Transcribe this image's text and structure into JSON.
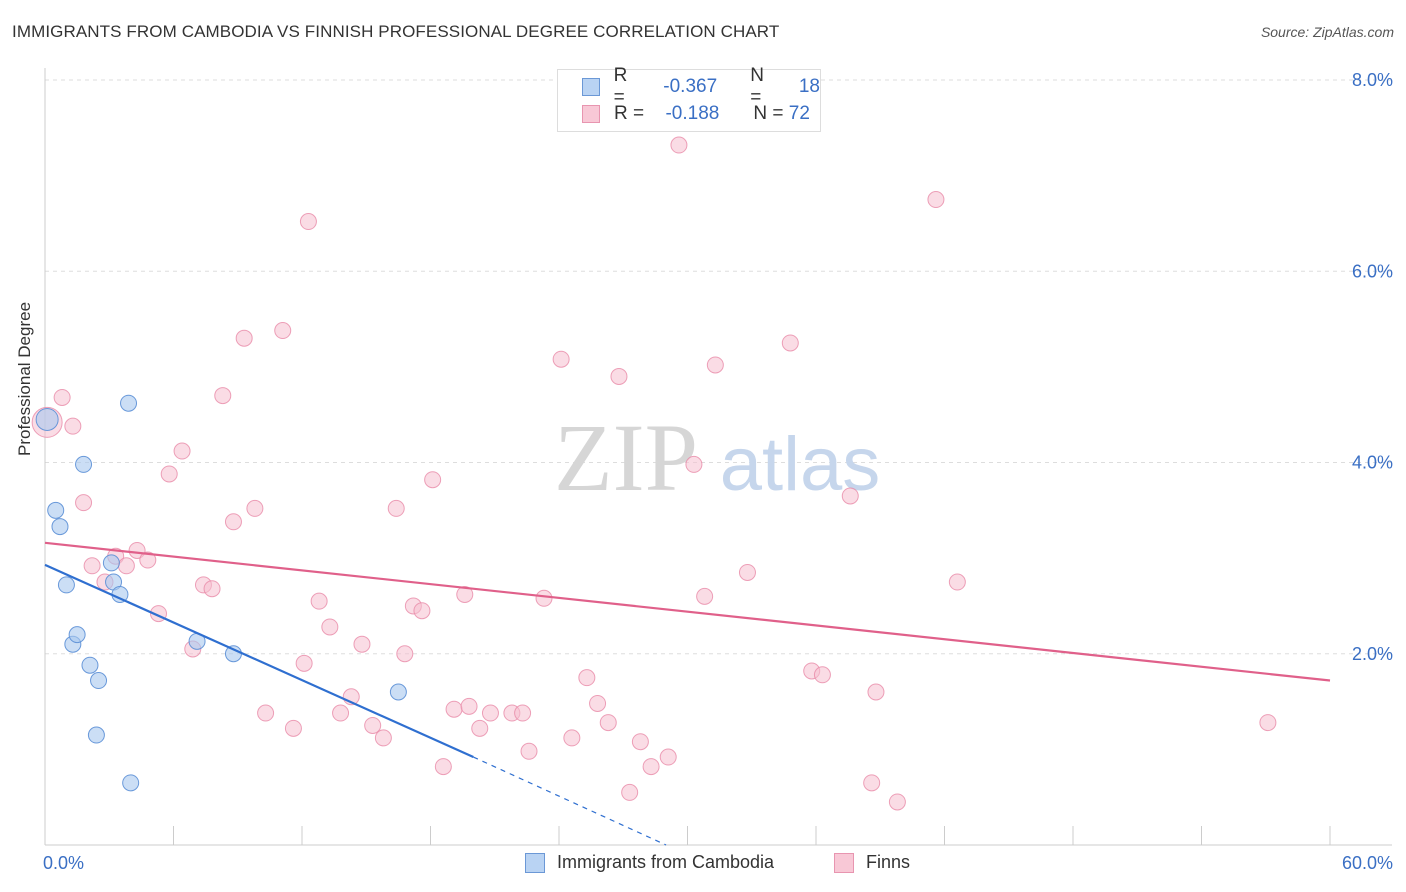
{
  "header": {
    "title": "IMMIGRANTS FROM CAMBODIA VS FINNISH PROFESSIONAL DEGREE CORRELATION CHART",
    "source": "Source: ZipAtlas.com"
  },
  "watermark": {
    "zip": "ZIP",
    "atlas": "atlas"
  },
  "colors": {
    "blue_fill": "#a9c8ef",
    "blue_stroke": "#5b8fd6",
    "blue_line": "#2f6fd0",
    "pink_fill": "#f5c0d0",
    "pink_stroke": "#e88aa8",
    "pink_line": "#e0608a",
    "grid": "#dddddd",
    "axis_text": "#3a6fc4"
  },
  "legend_top": {
    "rows": [
      {
        "r_label": "R =",
        "r_value": "-0.367",
        "n_label": "N =",
        "n_value": "18"
      },
      {
        "r_label": "R =",
        "r_value": "-0.188",
        "n_label": "N =",
        "n_value": "72"
      }
    ]
  },
  "legend_bottom": {
    "items": [
      {
        "label": "Immigrants from Cambodia"
      },
      {
        "label": "Finns"
      }
    ]
  },
  "chart_data": {
    "type": "scatter",
    "title": "IMMIGRANTS FROM CAMBODIA VS FINNISH PROFESSIONAL DEGREE CORRELATION CHART",
    "xlabel": "",
    "ylabel": "Professional Degree",
    "xlim": [
      0,
      60
    ],
    "ylim": [
      0,
      8
    ],
    "x_tick_labels": [
      "0.0%",
      "60.0%"
    ],
    "y_ticks": [
      2,
      4,
      6,
      8
    ],
    "y_tick_labels": [
      "2.0%",
      "4.0%",
      "6.0%",
      "8.0%"
    ],
    "grid": true,
    "legend_position": "top-center",
    "series": [
      {
        "name": "Immigrants from Cambodia",
        "r": -0.367,
        "n": 18,
        "points": [
          [
            0.1,
            4.45
          ],
          [
            0.5,
            3.5
          ],
          [
            0.7,
            3.33
          ],
          [
            1.0,
            2.72
          ],
          [
            1.3,
            2.1
          ],
          [
            1.5,
            2.2
          ],
          [
            1.8,
            3.98
          ],
          [
            2.1,
            1.88
          ],
          [
            2.4,
            1.15
          ],
          [
            2.5,
            1.72
          ],
          [
            3.1,
            2.95
          ],
          [
            3.2,
            2.75
          ],
          [
            3.5,
            2.62
          ],
          [
            3.9,
            4.62
          ],
          [
            4.0,
            0.65
          ],
          [
            7.1,
            2.13
          ],
          [
            8.8,
            2.0
          ],
          [
            16.5,
            1.6
          ]
        ],
        "trend_solid": [
          [
            0,
            2.93
          ],
          [
            20,
            0.92
          ]
        ],
        "trend_dashed": [
          [
            20,
            0.92
          ],
          [
            29,
            0.0
          ]
        ]
      },
      {
        "name": "Finns",
        "r": -0.188,
        "n": 72,
        "points": [
          [
            0.1,
            4.42
          ],
          [
            0.8,
            4.68
          ],
          [
            1.3,
            4.38
          ],
          [
            1.8,
            3.58
          ],
          [
            2.2,
            2.92
          ],
          [
            2.8,
            2.75
          ],
          [
            3.3,
            3.02
          ],
          [
            3.8,
            2.92
          ],
          [
            4.3,
            3.08
          ],
          [
            4.8,
            2.98
          ],
          [
            5.3,
            2.42
          ],
          [
            5.8,
            3.88
          ],
          [
            6.4,
            4.12
          ],
          [
            6.9,
            2.05
          ],
          [
            7.4,
            2.72
          ],
          [
            7.8,
            2.68
          ],
          [
            8.3,
            4.7
          ],
          [
            8.8,
            3.38
          ],
          [
            9.3,
            5.3
          ],
          [
            9.8,
            3.52
          ],
          [
            10.3,
            1.38
          ],
          [
            11.1,
            5.38
          ],
          [
            11.6,
            1.22
          ],
          [
            12.1,
            1.9
          ],
          [
            12.3,
            6.52
          ],
          [
            12.8,
            2.55
          ],
          [
            13.3,
            2.28
          ],
          [
            13.8,
            1.38
          ],
          [
            14.3,
            1.55
          ],
          [
            14.8,
            2.1
          ],
          [
            15.3,
            1.25
          ],
          [
            15.8,
            1.12
          ],
          [
            16.4,
            3.52
          ],
          [
            16.8,
            2.0
          ],
          [
            17.2,
            2.5
          ],
          [
            17.6,
            2.45
          ],
          [
            18.1,
            3.82
          ],
          [
            18.6,
            0.82
          ],
          [
            19.1,
            1.42
          ],
          [
            19.6,
            2.62
          ],
          [
            19.8,
            1.45
          ],
          [
            20.3,
            1.22
          ],
          [
            20.8,
            1.38
          ],
          [
            21.8,
            1.38
          ],
          [
            22.3,
            1.38
          ],
          [
            22.6,
            0.98
          ],
          [
            23.3,
            2.58
          ],
          [
            24.1,
            5.08
          ],
          [
            24.6,
            1.12
          ],
          [
            25.3,
            1.75
          ],
          [
            25.8,
            1.48
          ],
          [
            26.3,
            1.28
          ],
          [
            26.8,
            4.9
          ],
          [
            27.3,
            0.55
          ],
          [
            27.8,
            1.08
          ],
          [
            28.3,
            0.82
          ],
          [
            29.1,
            0.92
          ],
          [
            29.6,
            7.32
          ],
          [
            30.3,
            3.98
          ],
          [
            30.8,
            2.6
          ],
          [
            31.3,
            5.02
          ],
          [
            32.8,
            2.85
          ],
          [
            34.8,
            5.25
          ],
          [
            35.8,
            1.82
          ],
          [
            36.3,
            1.78
          ],
          [
            37.6,
            3.65
          ],
          [
            38.6,
            0.65
          ],
          [
            38.8,
            1.6
          ],
          [
            39.8,
            0.45
          ],
          [
            41.6,
            6.75
          ],
          [
            42.6,
            2.75
          ],
          [
            57.1,
            1.28
          ]
        ],
        "trend_solid": [
          [
            0,
            3.16
          ],
          [
            60,
            1.72
          ]
        ]
      }
    ]
  }
}
